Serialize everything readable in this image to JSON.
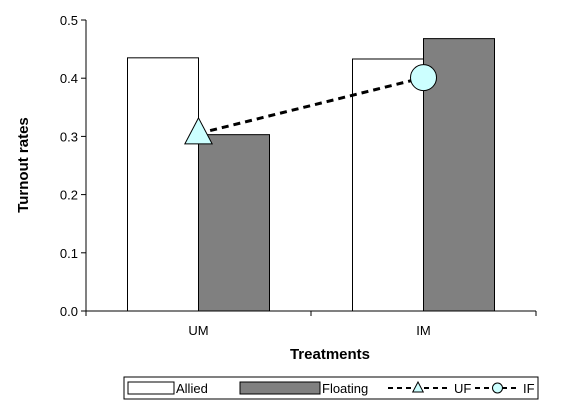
{
  "chart_data": {
    "type": "bar",
    "categories": [
      "UM",
      "IM"
    ],
    "series": [
      {
        "name": "Allied",
        "kind": "bar",
        "values": [
          0.435,
          0.433
        ],
        "color": "#ffffff"
      },
      {
        "name": "Floating",
        "kind": "bar",
        "values": [
          0.303,
          0.468
        ],
        "color": "#808080"
      }
    ],
    "overlay_points": [
      {
        "name": "UF",
        "marker": "triangle",
        "category": "UM",
        "value": 0.305,
        "color": "#ccffff"
      },
      {
        "name": "IF",
        "marker": "circle",
        "category": "IM",
        "value": 0.401,
        "color": "#ccffff"
      }
    ],
    "xlabel": "Treatments",
    "ylabel": "Turnout rates",
    "ylim": [
      0,
      0.5
    ],
    "yticks": [
      "0.0",
      "0.1",
      "0.2",
      "0.3",
      "0.4",
      "0.5"
    ],
    "yticks_values": [
      0,
      0.1,
      0.2,
      0.3,
      0.4,
      0.5
    ],
    "grid": false,
    "legend_position": "bottom"
  }
}
